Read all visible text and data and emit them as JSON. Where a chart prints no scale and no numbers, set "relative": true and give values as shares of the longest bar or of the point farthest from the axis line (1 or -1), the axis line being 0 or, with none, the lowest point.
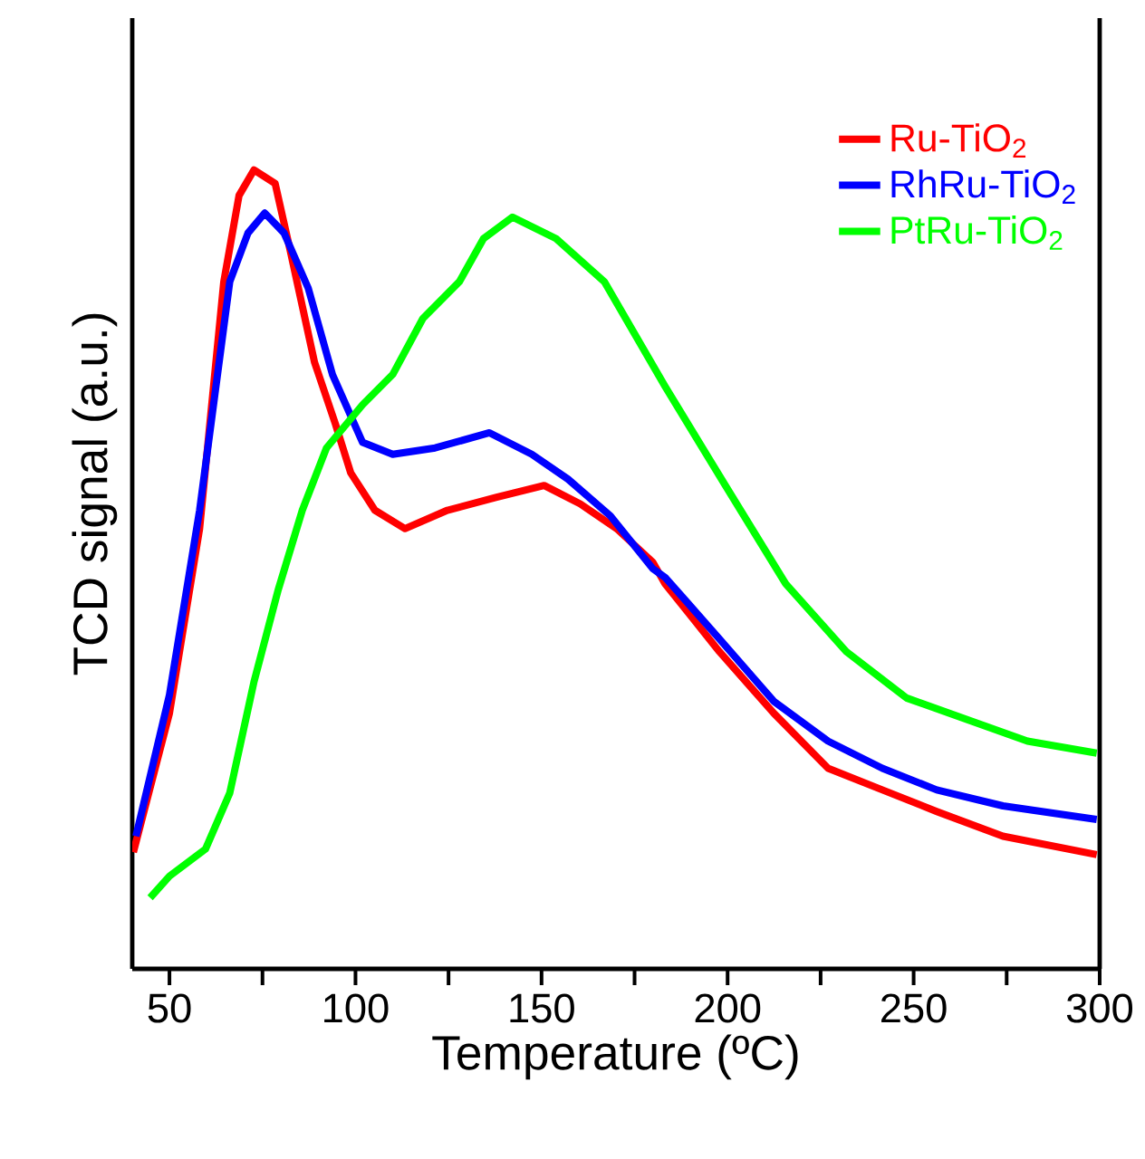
{
  "chart_data": {
    "type": "line",
    "xlabel": "Temperature (ºC)",
    "ylabel": "TCD signal (a.u.)",
    "relative": true,
    "tick_labels": "x",
    "legend": "top right",
    "marker": "none",
    "line_style": "solid",
    "xlim": [
      40,
      300
    ],
    "xticks": [
      50,
      {
        "value": 75,
        "label": null
      },
      100,
      {
        "value": 125,
        "label": null
      },
      150,
      {
        "value": 175,
        "label": null
      },
      200,
      {
        "value": 225,
        "label": null
      },
      250,
      {
        "value": 275,
        "label": null
      },
      300
    ],
    "series": [
      {
        "name": "Ru-TiO$_{2}$",
        "color": "#ff0000",
        "x": [
          40.3,
          50,
          58.1,
          64.6,
          68.7,
          72.7,
          78.4,
          82.5,
          89,
          94.6,
          98.7,
          105.2,
          113.3,
          124.7,
          137.7,
          150.7,
          160.4,
          170.2,
          179.9,
          183.2,
          197.8,
          212.4,
          227,
          241.6,
          256.2,
          274,
          299.2
        ],
        "values": [
          0.146,
          0.32,
          0.551,
          0.86,
          0.968,
          1.0,
          0.983,
          0.898,
          0.759,
          0.682,
          0.621,
          0.574,
          0.551,
          0.574,
          0.59,
          0.605,
          0.582,
          0.551,
          0.509,
          0.482,
          0.397,
          0.32,
          0.251,
          0.224,
          0.197,
          0.166,
          0.143
        ]
      },
      {
        "name": "RhRu-TiO$_{2}$",
        "color": "#0000ff",
        "x": [
          41,
          50,
          58.1,
          66.2,
          71.1,
          75.6,
          80.8,
          87.3,
          93.8,
          101.9,
          110,
          121.4,
          136,
          147.4,
          157.1,
          168.5,
          179.9,
          183.2,
          197.8,
          212.4,
          227,
          241.6,
          256.2,
          274,
          299.2
        ],
        "values": [
          0.166,
          0.343,
          0.574,
          0.86,
          0.921,
          0.946,
          0.921,
          0.852,
          0.744,
          0.659,
          0.644,
          0.652,
          0.671,
          0.644,
          0.613,
          0.567,
          0.501,
          0.49,
          0.413,
          0.335,
          0.285,
          0.251,
          0.224,
          0.204,
          0.187
        ]
      },
      {
        "name": "PtRu-TiO$_{2}$",
        "color": "#00ff00",
        "x": [
          44.8,
          50,
          59.7,
          66.2,
          72.7,
          79.2,
          85.7,
          92.2,
          101.9,
          110,
          118.1,
          127.9,
          134.4,
          142.2,
          153.9,
          166.9,
          183.2,
          199.4,
          215.6,
          231.9,
          248.1,
          264.4,
          280.6,
          299.2
        ],
        "values": [
          0.089,
          0.116,
          0.15,
          0.22,
          0.359,
          0.474,
          0.574,
          0.652,
          0.706,
          0.744,
          0.814,
          0.86,
          0.914,
          0.941,
          0.914,
          0.86,
          0.729,
          0.605,
          0.482,
          0.397,
          0.339,
          0.312,
          0.285,
          0.27
        ]
      }
    ]
  }
}
